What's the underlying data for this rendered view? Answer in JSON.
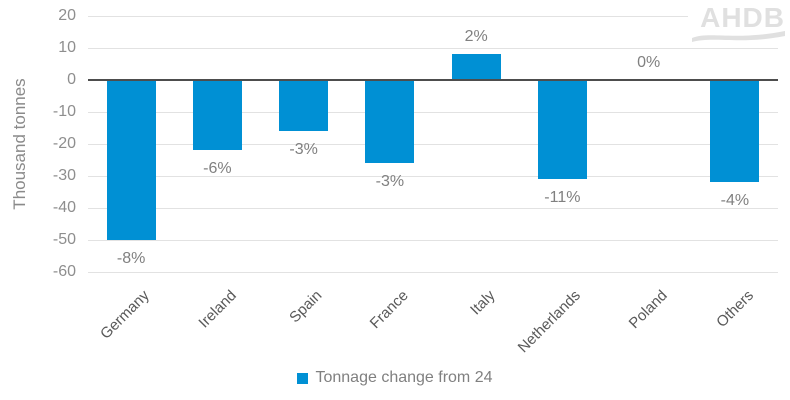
{
  "logo": {
    "text": "AHDB"
  },
  "legend": {
    "label": "Tonnage change from 24"
  },
  "colors": {
    "bar": "#0090d4",
    "gridline": "#e2e2e2",
    "zero_line": "#4d4d4d",
    "tick_text": "#8e8e8e",
    "category_text": "#595959",
    "data_label_text": "#808080",
    "logo_gray": "#e0e0e0"
  },
  "chart_data": {
    "type": "bar",
    "categories": [
      "Germany",
      "Ireland",
      "Spain",
      "France",
      "Italy",
      "Netherlands",
      "Poland",
      "Others"
    ],
    "values": [
      -50,
      -22,
      -16,
      -26,
      8,
      -31,
      0,
      -32
    ],
    "data_labels": [
      "-8%",
      "-6%",
      "-3%",
      "-3%",
      "2%",
      "-11%",
      "0%",
      "-4%"
    ],
    "title": "",
    "xlabel": "",
    "ylabel": "Thousand tonnes",
    "ylim": [
      -60,
      20
    ],
    "yticks": [
      20,
      10,
      0,
      -10,
      -20,
      -30,
      -40,
      -50,
      -60
    ],
    "grid": true,
    "legend": [
      "Tonnage change from 24"
    ],
    "legend_position": "bottom",
    "series_color": "#0090d4"
  }
}
